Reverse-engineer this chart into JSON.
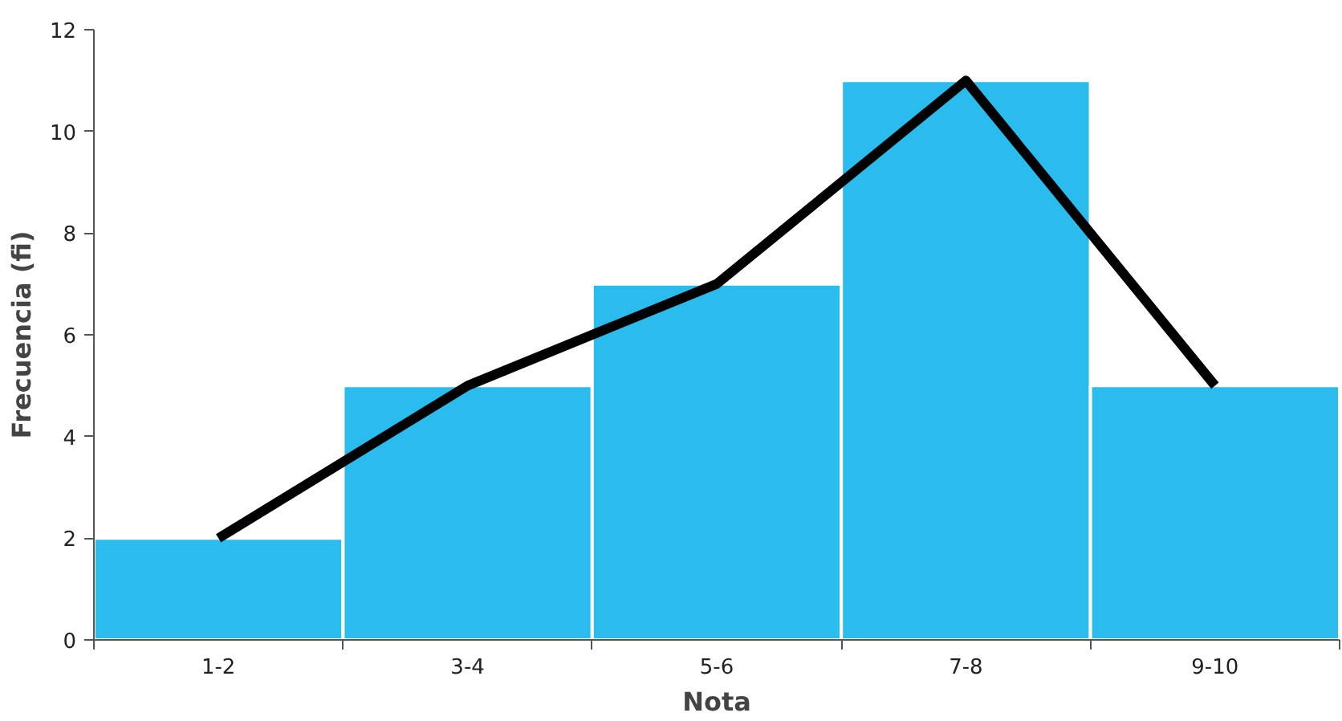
{
  "chart_data": {
    "type": "bar",
    "xlabel": "Nota",
    "ylabel": "Frecuencia (fi)",
    "categories": [
      "1-2",
      "3-4",
      "5-6",
      "7-8",
      "9-10"
    ],
    "series": [
      {
        "color": "#29bced",
        "values": [
          2,
          5,
          7,
          11,
          5
        ]
      },
      {
        "type": "line",
        "color": "#000000",
        "values": [
          2,
          5,
          7,
          11,
          5
        ]
      }
    ],
    "ylim": [
      0,
      12
    ],
    "yticks": [
      0,
      2,
      4,
      6,
      8,
      10,
      12
    ],
    "grid": false,
    "marker": "none"
  }
}
